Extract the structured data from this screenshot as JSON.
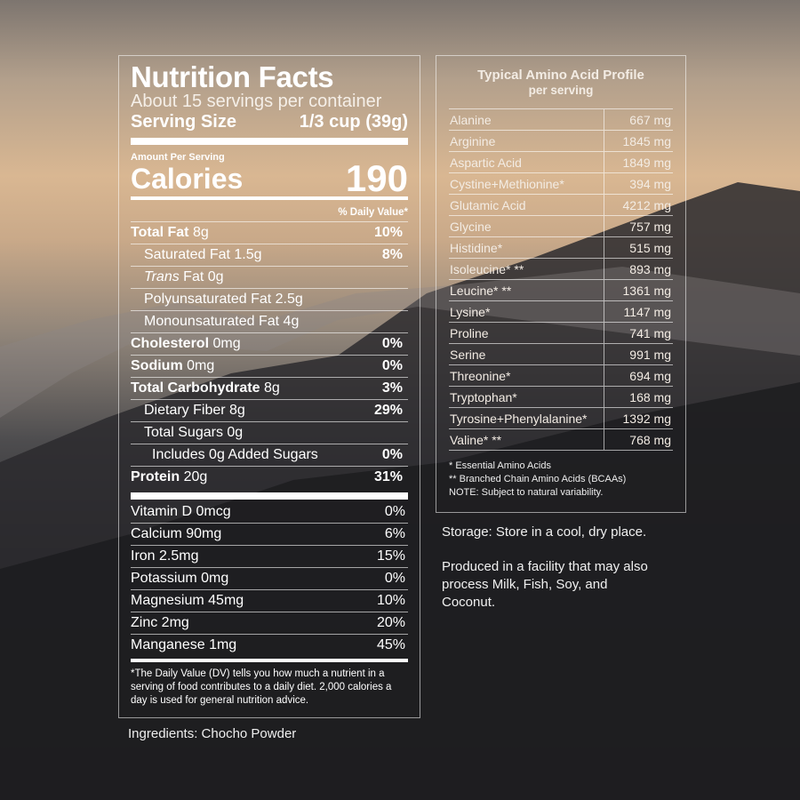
{
  "nutrition": {
    "title": "Nutrition Facts",
    "servings": "About 15 servings per container",
    "serving_size_label": "Serving Size",
    "serving_size_value": "1/3 cup (39g)",
    "amount_per_serving": "Amount Per Serving",
    "calories_label": "Calories",
    "calories_value": "190",
    "daily_value_header": "% Daily Value*",
    "rows": [
      {
        "name": "Total Fat",
        "amount": "8g",
        "pct": "10%",
        "bold": true,
        "indent": 0
      },
      {
        "name": "Saturated Fat",
        "amount": "1.5g",
        "pct": "8%",
        "indent": 1
      },
      {
        "name": "Trans",
        "amount": "Fat 0g",
        "pct": "",
        "indent": 1,
        "italic": true
      },
      {
        "name": "Polyunsaturated Fat",
        "amount": "2.5g",
        "pct": "",
        "indent": 1
      },
      {
        "name": "Monounsaturated Fat",
        "amount": "4g",
        "pct": "",
        "indent": 1
      },
      {
        "name": "Cholesterol",
        "amount": "0mg",
        "pct": "0%",
        "bold": true,
        "indent": 0
      },
      {
        "name": "Sodium",
        "amount": "0mg",
        "pct": "0%",
        "bold": true,
        "indent": 0
      },
      {
        "name": "Total Carbohydrate",
        "amount": "8g",
        "pct": "3%",
        "bold": true,
        "indent": 0
      },
      {
        "name": "Dietary Fiber",
        "amount": "8g",
        "pct": "29%",
        "indent": 1
      },
      {
        "name": "Total Sugars",
        "amount": "0g",
        "pct": "",
        "indent": 1
      },
      {
        "name": "Includes 0g Added Sugars",
        "amount": "",
        "pct": "0%",
        "indent": 2
      },
      {
        "name": "Protein",
        "amount": "20g",
        "pct": "31%",
        "bold": true,
        "indent": 0
      }
    ],
    "vitamins": [
      {
        "name": "Vitamin D 0mcg",
        "pct": "0%"
      },
      {
        "name": "Calcium 90mg",
        "pct": "6%"
      },
      {
        "name": "Iron 2.5mg",
        "pct": "15%"
      },
      {
        "name": "Potassium 0mg",
        "pct": "0%"
      },
      {
        "name": "Magnesium 45mg",
        "pct": "10%"
      },
      {
        "name": "Zinc 2mg",
        "pct": "20%"
      },
      {
        "name": "Manganese 1mg",
        "pct": "45%"
      }
    ],
    "footnote": "*The Daily Value (DV) tells you how much a nutrient in a serving of food contributes to a daily diet. 2,000 calories a day is used for general nutrition advice."
  },
  "ingredients": "Ingredients: Chocho Powder",
  "amino": {
    "title": "Typical Amino Acid Profile",
    "subtitle": "per serving",
    "rows": [
      [
        "Alanine",
        "667 mg"
      ],
      [
        "Arginine",
        "1845 mg"
      ],
      [
        "Aspartic Acid",
        "1849 mg"
      ],
      [
        "Cystine+Methionine*",
        "394 mg"
      ],
      [
        "Glutamic Acid",
        "4212 mg"
      ],
      [
        "Glycine",
        "757 mg"
      ],
      [
        "Histidine*",
        "515 mg"
      ],
      [
        "Isoleucine* **",
        "893 mg"
      ],
      [
        "Leucine* **",
        "1361 mg"
      ],
      [
        "Lysine*",
        "1147 mg"
      ],
      [
        "Proline",
        "741 mg"
      ],
      [
        "Serine",
        "991 mg"
      ],
      [
        "Threonine*",
        "694 mg"
      ],
      [
        "Tryptophan*",
        "168 mg"
      ],
      [
        "Tyrosine+Phenylalanine*",
        "1392 mg"
      ],
      [
        "Valine* **",
        "768 mg"
      ]
    ],
    "notes": [
      "* Essential Amino Acids",
      "** Branched Chain Amino Acids (BCAAs)",
      "NOTE: Subject to natural variability."
    ]
  },
  "storage": "Storage: Store in a cool, dry place.",
  "allergen": "Produced in a facility that may also process Milk, Fish, Soy, and Coconut."
}
